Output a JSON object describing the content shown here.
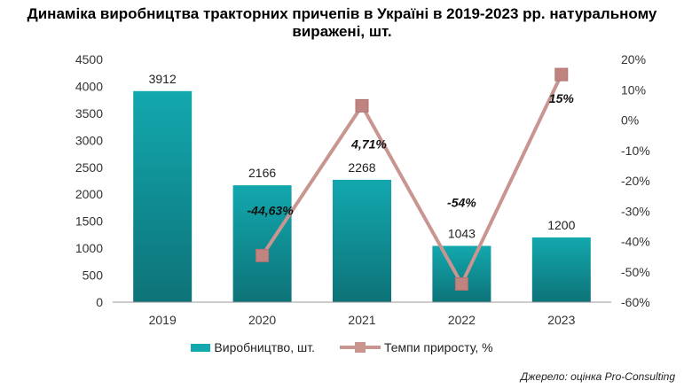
{
  "title_line1": "Динаміка виробництва тракторних причепів в Україні в 2019-2023 рр. натуральному",
  "title_line2": "виражені, шт.",
  "source": "Джерело: оцінка Pro-Consulting",
  "colors": {
    "bar": "#12a8ae",
    "bar_dark": "#0d6f74",
    "line": "#c89591",
    "marker": "#c08480"
  },
  "chart_data": {
    "type": "bar+line",
    "categories": [
      "2019",
      "2020",
      "2021",
      "2022",
      "2023"
    ],
    "series": [
      {
        "name": "Виробництво, шт.",
        "type": "bar",
        "axis": "left",
        "values": [
          3912,
          2166,
          2268,
          1043,
          1200
        ],
        "labels": [
          "3912",
          "2166",
          "2268",
          "1043",
          "1200"
        ]
      },
      {
        "name": "Темпи приросту, %",
        "type": "line",
        "axis": "right",
        "values": [
          null,
          -44.63,
          4.71,
          -54,
          15
        ],
        "labels": [
          "",
          "-44,63%",
          "4,71%",
          "-54%",
          "15%"
        ]
      }
    ],
    "left_axis": {
      "ylim": [
        0,
        4500
      ],
      "ticks": [
        "0",
        "500",
        "1000",
        "1500",
        "2000",
        "2500",
        "3000",
        "3500",
        "4000",
        "4500"
      ]
    },
    "right_axis": {
      "ylim": [
        -60,
        20
      ],
      "ticks": [
        "-60%",
        "-50%",
        "-40%",
        "-30%",
        "-20%",
        "-10%",
        "0%",
        "10%",
        "20%"
      ]
    },
    "legend": "bottom",
    "grid": false
  }
}
